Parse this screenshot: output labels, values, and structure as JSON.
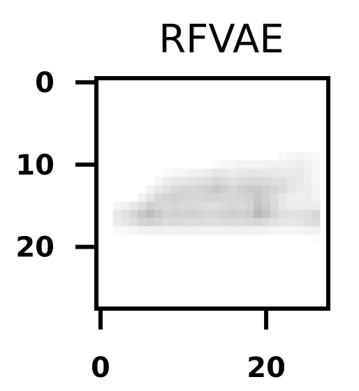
{
  "chart_data": {
    "type": "heatmap",
    "title": "RFVAE",
    "xlabel": "",
    "ylabel": "",
    "xlim": [
      -0.5,
      27.5
    ],
    "ylim": [
      27.5,
      -0.5
    ],
    "x_ticks": [
      {
        "value": 0,
        "label": "0"
      },
      {
        "value": 20,
        "label": "20"
      }
    ],
    "y_ticks": [
      {
        "value": 0,
        "label": "0"
      },
      {
        "value": 10,
        "label": "10"
      },
      {
        "value": 20,
        "label": "20"
      }
    ],
    "grid": false,
    "colormap": "greys",
    "colors": {
      "ink": "#000000",
      "background": "#ffffff"
    },
    "intensity": [
      [
        0,
        0,
        0,
        0,
        0,
        0,
        0,
        0,
        0,
        0,
        0,
        0,
        0,
        0,
        0,
        0,
        0,
        0,
        0,
        0,
        0,
        0,
        0,
        0,
        0,
        0,
        0,
        0
      ],
      [
        0,
        0,
        0,
        0,
        0,
        0,
        0,
        0,
        0,
        0,
        0,
        0,
        0,
        0,
        0,
        0,
        0,
        0,
        0,
        0,
        0,
        0,
        0,
        0,
        0,
        0,
        0,
        0
      ],
      [
        0,
        0,
        0,
        0,
        0,
        0,
        0,
        0,
        0,
        0,
        0,
        0,
        0,
        0,
        0,
        0,
        0,
        0,
        0,
        0,
        0,
        0,
        0,
        0,
        0,
        0,
        0,
        0
      ],
      [
        0,
        0,
        0,
        0,
        0,
        0,
        0,
        0,
        0,
        0,
        0,
        0,
        0,
        0,
        0,
        0,
        0,
        0,
        0,
        0,
        0,
        0,
        0,
        0,
        0,
        0,
        0,
        0
      ],
      [
        0,
        0,
        0,
        0,
        0,
        0,
        0,
        0,
        0,
        0,
        0,
        0,
        0,
        0,
        0,
        0,
        0,
        0,
        0,
        0,
        0,
        0,
        0,
        0,
        0,
        0,
        0,
        0
      ],
      [
        0,
        0,
        0,
        0,
        0,
        0,
        0,
        0,
        0,
        0,
        0,
        0,
        0,
        0,
        0,
        0,
        0,
        0,
        0,
        0,
        0,
        0,
        0,
        0,
        0,
        0,
        0,
        0
      ],
      [
        0,
        0,
        0,
        0,
        0,
        0,
        0,
        0,
        0,
        0,
        0,
        0,
        0,
        0,
        0,
        0,
        0,
        0,
        0,
        0,
        0,
        0,
        0,
        0,
        0,
        0,
        0,
        0
      ],
      [
        0,
        0,
        0,
        0,
        0,
        0,
        0,
        0,
        0,
        0,
        0,
        0,
        0,
        0,
        0,
        0,
        0,
        0,
        0,
        0,
        0,
        0,
        0,
        0,
        0,
        0,
        0,
        0
      ],
      [
        0,
        0,
        0,
        0,
        0,
        0,
        0,
        0,
        0,
        0,
        0,
        0,
        0,
        0,
        0,
        0,
        0,
        0,
        0,
        0,
        0,
        0,
        0,
        0,
        0,
        0,
        0,
        0
      ],
      [
        0,
        0,
        0,
        0,
        0,
        0,
        0,
        0,
        0,
        0,
        0,
        0,
        0,
        0,
        0,
        0,
        0,
        0,
        0,
        0,
        0,
        0,
        0.02,
        0.03,
        0.04,
        0.03,
        0.02,
        0
      ],
      [
        0,
        0,
        0,
        0,
        0,
        0,
        0,
        0,
        0,
        0,
        0,
        0,
        0,
        0,
        0.02,
        0.03,
        0.04,
        0.05,
        0.05,
        0.05,
        0.05,
        0.06,
        0.06,
        0.06,
        0.07,
        0.05,
        0.03,
        0
      ],
      [
        0,
        0,
        0,
        0,
        0,
        0,
        0,
        0,
        0.02,
        0.03,
        0.04,
        0.05,
        0.06,
        0.08,
        0.1,
        0.09,
        0.08,
        0.09,
        0.1,
        0.1,
        0.09,
        0.09,
        0.08,
        0.08,
        0.09,
        0.06,
        0.03,
        0
      ],
      [
        0,
        0,
        0,
        0,
        0,
        0,
        0,
        0.04,
        0.07,
        0.09,
        0.1,
        0.11,
        0.12,
        0.13,
        0.16,
        0.14,
        0.12,
        0.14,
        0.15,
        0.15,
        0.14,
        0.13,
        0.12,
        0.1,
        0.09,
        0.06,
        0.03,
        0
      ],
      [
        0,
        0,
        0,
        0,
        0,
        0,
        0.05,
        0.09,
        0.12,
        0.15,
        0.16,
        0.16,
        0.17,
        0.18,
        0.21,
        0.19,
        0.16,
        0.19,
        0.2,
        0.21,
        0.19,
        0.17,
        0.14,
        0.1,
        0.08,
        0.07,
        0.04,
        0
      ],
      [
        0,
        0,
        0,
        0,
        0,
        0.05,
        0.1,
        0.15,
        0.17,
        0.18,
        0.17,
        0.16,
        0.16,
        0.17,
        0.17,
        0.16,
        0.16,
        0.17,
        0.18,
        0.22,
        0.18,
        0.14,
        0.1,
        0.07,
        0.06,
        0.07,
        0.05,
        0
      ],
      [
        0,
        0,
        0.04,
        0.06,
        0.09,
        0.13,
        0.18,
        0.16,
        0.15,
        0.16,
        0.15,
        0.15,
        0.14,
        0.13,
        0.13,
        0.15,
        0.16,
        0.15,
        0.17,
        0.24,
        0.2,
        0.15,
        0.1,
        0.08,
        0.07,
        0.08,
        0.07,
        0
      ],
      [
        0,
        0,
        0.09,
        0.12,
        0.16,
        0.22,
        0.26,
        0.21,
        0.17,
        0.18,
        0.17,
        0.18,
        0.17,
        0.16,
        0.16,
        0.18,
        0.19,
        0.18,
        0.2,
        0.27,
        0.23,
        0.17,
        0.13,
        0.12,
        0.12,
        0.13,
        0.16,
        0
      ],
      [
        0,
        0,
        0.08,
        0.1,
        0.13,
        0.16,
        0.18,
        0.16,
        0.14,
        0.15,
        0.14,
        0.14,
        0.14,
        0.13,
        0.13,
        0.14,
        0.14,
        0.14,
        0.15,
        0.16,
        0.14,
        0.12,
        0.1,
        0.1,
        0.1,
        0.12,
        0.14,
        0
      ],
      [
        0,
        0,
        0.02,
        0.03,
        0.04,
        0.05,
        0.06,
        0.06,
        0.05,
        0.05,
        0.05,
        0.05,
        0.05,
        0.05,
        0.05,
        0.05,
        0.05,
        0.05,
        0.05,
        0.05,
        0.05,
        0.04,
        0.04,
        0.04,
        0.04,
        0.05,
        0.05,
        0
      ],
      [
        0,
        0,
        0,
        0,
        0,
        0,
        0,
        0,
        0,
        0,
        0,
        0,
        0,
        0,
        0,
        0,
        0,
        0,
        0,
        0,
        0,
        0,
        0,
        0,
        0,
        0,
        0.01,
        0
      ],
      [
        0,
        0,
        0,
        0,
        0,
        0,
        0,
        0,
        0,
        0,
        0,
        0,
        0,
        0,
        0,
        0,
        0,
        0,
        0,
        0,
        0,
        0,
        0,
        0,
        0,
        0,
        0,
        0
      ],
      [
        0,
        0,
        0,
        0,
        0,
        0,
        0,
        0,
        0,
        0,
        0,
        0,
        0,
        0,
        0,
        0,
        0,
        0,
        0,
        0,
        0,
        0,
        0,
        0,
        0,
        0,
        0,
        0
      ],
      [
        0,
        0,
        0,
        0,
        0,
        0,
        0,
        0,
        0,
        0,
        0,
        0,
        0,
        0,
        0,
        0,
        0,
        0,
        0,
        0,
        0,
        0,
        0,
        0,
        0,
        0,
        0,
        0
      ],
      [
        0,
        0,
        0,
        0,
        0,
        0,
        0,
        0,
        0,
        0,
        0,
        0,
        0,
        0,
        0,
        0,
        0,
        0,
        0,
        0,
        0,
        0,
        0,
        0,
        0,
        0,
        0,
        0
      ],
      [
        0,
        0,
        0,
        0,
        0,
        0,
        0,
        0,
        0,
        0,
        0,
        0,
        0,
        0,
        0,
        0,
        0,
        0,
        0,
        0,
        0,
        0,
        0,
        0,
        0,
        0,
        0,
        0
      ],
      [
        0,
        0,
        0,
        0,
        0,
        0,
        0,
        0,
        0,
        0,
        0,
        0,
        0,
        0,
        0,
        0,
        0,
        0,
        0,
        0,
        0,
        0,
        0,
        0,
        0,
        0,
        0,
        0
      ],
      [
        0,
        0,
        0,
        0,
        0,
        0,
        0,
        0,
        0,
        0,
        0,
        0,
        0,
        0,
        0,
        0,
        0,
        0,
        0,
        0,
        0,
        0,
        0,
        0,
        0,
        0,
        0,
        0
      ],
      [
        0,
        0,
        0,
        0,
        0,
        0,
        0,
        0,
        0,
        0,
        0,
        0,
        0,
        0,
        0,
        0,
        0,
        0,
        0,
        0,
        0,
        0,
        0,
        0,
        0,
        0,
        0,
        0
      ]
    ]
  }
}
